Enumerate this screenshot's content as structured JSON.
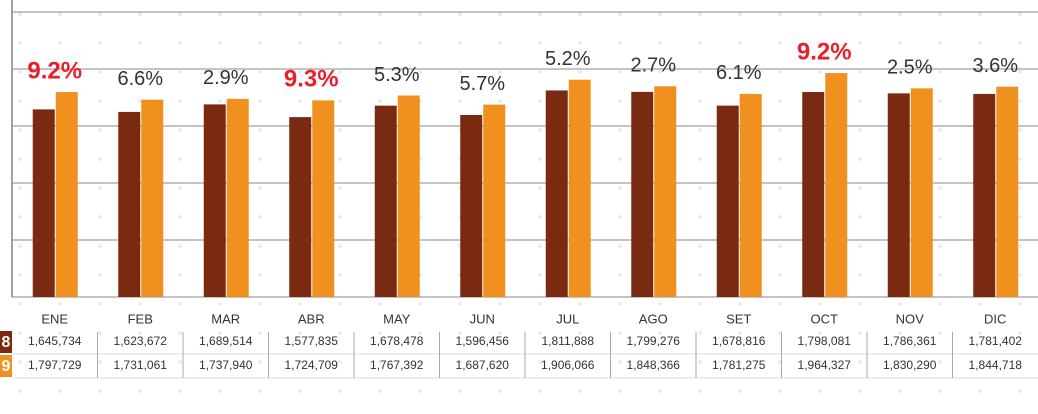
{
  "chart_data": {
    "type": "bar",
    "categories": [
      "ENE",
      "FEB",
      "MAR",
      "ABR",
      "MAY",
      "JUN",
      "JUL",
      "AGO",
      "SET",
      "OCT",
      "NOV",
      "DIC"
    ],
    "series": [
      {
        "name": "8",
        "color": "#7b2a12",
        "values": [
          1645734,
          1623672,
          1689514,
          1577835,
          1678478,
          1596456,
          1811888,
          1799276,
          1678816,
          1798081,
          1786361,
          1781402
        ],
        "value_labels": [
          "1,645,734",
          "1,623,672",
          "1,689,514",
          "1,577,835",
          "1,678,478",
          "1,596,456",
          "1,811,888",
          "1,799,276",
          "1,678,816",
          "1,798,081",
          "1,786,361",
          "1,781,402"
        ]
      },
      {
        "name": "9",
        "color": "#f0901f",
        "values": [
          1797729,
          1731061,
          1737940,
          1724709,
          1767392,
          1687620,
          1906066,
          1848366,
          1781275,
          1964327,
          1830290,
          1844718
        ],
        "value_labels": [
          "1,797,729",
          "1,731,061",
          "1,737,940",
          "1,724,709",
          "1,767,392",
          "1,687,620",
          "1,906,066",
          "1,848,366",
          "1,781,275",
          "1,964,327",
          "1,830,290",
          "1,844,718"
        ]
      }
    ],
    "growth_labels": [
      "9.2%",
      "6.6%",
      "2.9%",
      "9.3%",
      "5.3%",
      "5.7%",
      "5.2%",
      "2.7%",
      "6.1%",
      "9.2%",
      "2.5%",
      "3.6%"
    ],
    "growth_colors": [
      "#e8202a",
      "#333333",
      "#333333",
      "#e8202a",
      "#333333",
      "#333333",
      "#333333",
      "#333333",
      "#333333",
      "#e8202a",
      "#333333",
      "#333333"
    ],
    "ylim": [
      0,
      2500000
    ],
    "yticks": [
      0,
      500000,
      1000000,
      1500000,
      2000000,
      2500000
    ],
    "grid": true
  }
}
